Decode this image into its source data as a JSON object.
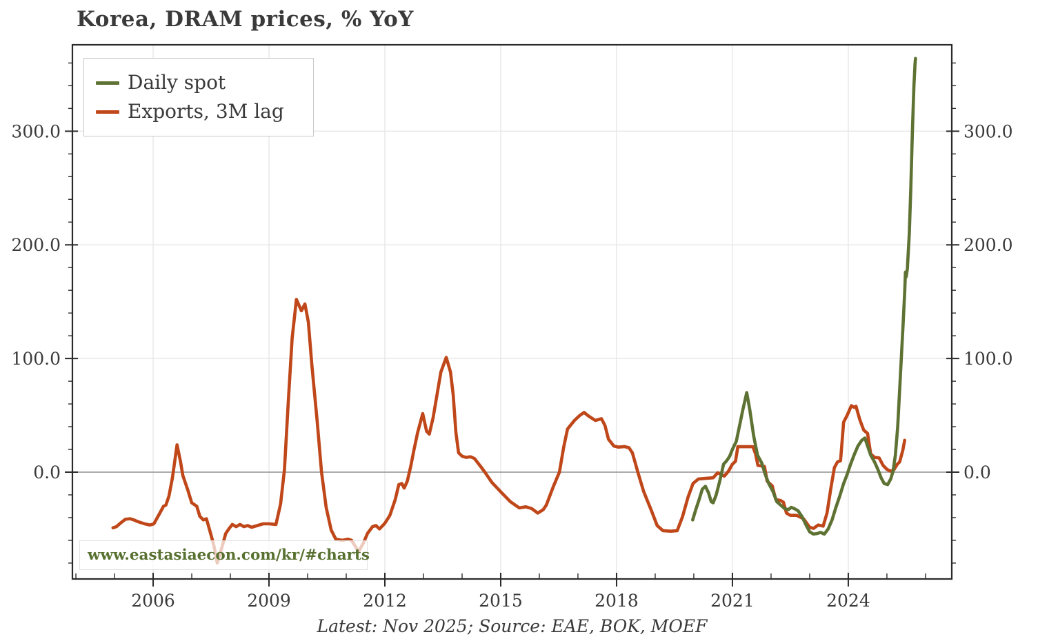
{
  "header": {
    "title": "Korea, DRAM prices, % YoY"
  },
  "caption": {
    "text": "Latest: Nov 2025; Source: EAE, BOK, MOEF"
  },
  "watermark": {
    "text": "www.eastasiaecon.com/kr/#charts",
    "color": "#587130"
  },
  "colors": {
    "background": "#ffffff",
    "grid": "#e7e7e7",
    "zero_line": "#8f8f8f",
    "spine": "#2a2a2a",
    "text": "#3a3a3a"
  },
  "chart_data": {
    "type": "line",
    "title": "Korea, DRAM prices, % YoY",
    "xlabel": "",
    "ylabel": "",
    "xlim": [
      2003.91,
      2026.68
    ],
    "ylim": [
      -94,
      376
    ],
    "x_major_ticks": [
      2006,
      2009,
      2012,
      2015,
      2018,
      2021,
      2024
    ],
    "x_tick_labels": [
      "2006",
      "2009",
      "2012",
      "2015",
      "2018",
      "2021",
      "2024"
    ],
    "x_minor_step": 1,
    "y_major_ticks": [
      0,
      100,
      200,
      300
    ],
    "y_tick_labels": [
      "0.0",
      "100.0",
      "200.0",
      "300.0"
    ],
    "y_minor_step": 20,
    "grid": true,
    "zero_line": true,
    "legend": {
      "position": "upper left",
      "entries": [
        {
          "label": "Daily spot",
          "color": "#5e7233"
        },
        {
          "label": "Exports, 3M lag",
          "color": "#bf4719"
        }
      ]
    },
    "series": [
      {
        "name": "Exports, 3M lag",
        "color": "#bf4719",
        "points": [
          [
            2004.96,
            -49
          ],
          [
            2005.05,
            -48
          ],
          [
            2005.15,
            -45
          ],
          [
            2005.28,
            -41.5
          ],
          [
            2005.4,
            -41
          ],
          [
            2005.5,
            -42
          ],
          [
            2005.6,
            -43.5
          ],
          [
            2005.78,
            -45.5
          ],
          [
            2005.92,
            -46.5
          ],
          [
            2006.02,
            -45.5
          ],
          [
            2006.14,
            -38
          ],
          [
            2006.27,
            -30
          ],
          [
            2006.33,
            -29
          ],
          [
            2006.41,
            -21
          ],
          [
            2006.5,
            -5
          ],
          [
            2006.62,
            24
          ],
          [
            2006.71,
            9
          ],
          [
            2006.77,
            -3
          ],
          [
            2006.89,
            -15
          ],
          [
            2007.0,
            -27
          ],
          [
            2007.13,
            -30
          ],
          [
            2007.21,
            -39
          ],
          [
            2007.3,
            -42
          ],
          [
            2007.38,
            -41
          ],
          [
            2007.48,
            -53
          ],
          [
            2007.57,
            -64
          ],
          [
            2007.66,
            -80
          ],
          [
            2007.79,
            -65
          ],
          [
            2007.88,
            -54
          ],
          [
            2007.96,
            -50
          ],
          [
            2008.05,
            -46
          ],
          [
            2008.15,
            -48
          ],
          [
            2008.25,
            -46
          ],
          [
            2008.35,
            -48
          ],
          [
            2008.45,
            -47
          ],
          [
            2008.55,
            -48.5
          ],
          [
            2008.7,
            -47
          ],
          [
            2008.85,
            -45.5
          ],
          [
            2009.0,
            -45.5
          ],
          [
            2009.18,
            -46
          ],
          [
            2009.3,
            -28
          ],
          [
            2009.4,
            2
          ],
          [
            2009.5,
            62
          ],
          [
            2009.6,
            118
          ],
          [
            2009.71,
            152
          ],
          [
            2009.84,
            142
          ],
          [
            2009.93,
            148
          ],
          [
            2010.02,
            132
          ],
          [
            2010.11,
            94
          ],
          [
            2010.25,
            44
          ],
          [
            2010.36,
            0
          ],
          [
            2010.48,
            -31
          ],
          [
            2010.61,
            -51
          ],
          [
            2010.73,
            -59
          ],
          [
            2010.9,
            -60
          ],
          [
            2011.05,
            -59
          ],
          [
            2011.14,
            -60
          ],
          [
            2011.32,
            -70
          ],
          [
            2011.45,
            -62
          ],
          [
            2011.55,
            -54
          ],
          [
            2011.68,
            -48
          ],
          [
            2011.77,
            -47
          ],
          [
            2011.86,
            -50
          ],
          [
            2012.0,
            -45
          ],
          [
            2012.13,
            -38
          ],
          [
            2012.27,
            -24
          ],
          [
            2012.36,
            -11
          ],
          [
            2012.44,
            -10
          ],
          [
            2012.5,
            -14
          ],
          [
            2012.58,
            -8
          ],
          [
            2012.67,
            5
          ],
          [
            2012.75,
            19
          ],
          [
            2012.85,
            35
          ],
          [
            2012.98,
            51.5
          ],
          [
            2013.08,
            36
          ],
          [
            2013.15,
            33.5
          ],
          [
            2013.25,
            48
          ],
          [
            2013.35,
            68
          ],
          [
            2013.45,
            88
          ],
          [
            2013.59,
            101
          ],
          [
            2013.7,
            88
          ],
          [
            2013.77,
            68
          ],
          [
            2013.84,
            35
          ],
          [
            2013.91,
            17
          ],
          [
            2014.0,
            14
          ],
          [
            2014.1,
            13
          ],
          [
            2014.22,
            13.5
          ],
          [
            2014.32,
            12
          ],
          [
            2014.48,
            5
          ],
          [
            2014.59,
            0
          ],
          [
            2014.77,
            -9
          ],
          [
            2015.02,
            -18
          ],
          [
            2015.25,
            -26
          ],
          [
            2015.48,
            -31.5
          ],
          [
            2015.65,
            -30.5
          ],
          [
            2015.8,
            -32
          ],
          [
            2015.96,
            -36
          ],
          [
            2016.1,
            -33
          ],
          [
            2016.18,
            -29
          ],
          [
            2016.36,
            -13
          ],
          [
            2016.52,
            0
          ],
          [
            2016.63,
            22
          ],
          [
            2016.73,
            38
          ],
          [
            2016.91,
            45.5
          ],
          [
            2017.05,
            50
          ],
          [
            2017.16,
            52.5
          ],
          [
            2017.27,
            49.5
          ],
          [
            2017.45,
            45.5
          ],
          [
            2017.61,
            47
          ],
          [
            2017.7,
            41
          ],
          [
            2017.79,
            29
          ],
          [
            2017.93,
            23
          ],
          [
            2018.05,
            22
          ],
          [
            2018.2,
            22.5
          ],
          [
            2018.32,
            21.5
          ],
          [
            2018.41,
            17
          ],
          [
            2018.55,
            0
          ],
          [
            2018.7,
            -17
          ],
          [
            2018.91,
            -34.5
          ],
          [
            2019.05,
            -47
          ],
          [
            2019.2,
            -51.5
          ],
          [
            2019.4,
            -52
          ],
          [
            2019.57,
            -51.5
          ],
          [
            2019.71,
            -39
          ],
          [
            2019.85,
            -22
          ],
          [
            2019.98,
            -10
          ],
          [
            2020.12,
            -6
          ],
          [
            2020.3,
            -5.5
          ],
          [
            2020.5,
            -5
          ],
          [
            2020.62,
            -0.5
          ],
          [
            2020.79,
            -3.5
          ],
          [
            2020.9,
            1
          ],
          [
            2021.0,
            7
          ],
          [
            2021.08,
            9.5
          ],
          [
            2021.14,
            22.4
          ],
          [
            2021.35,
            22.4
          ],
          [
            2021.53,
            22.4
          ],
          [
            2021.6,
            16
          ],
          [
            2021.66,
            6
          ],
          [
            2021.83,
            5
          ],
          [
            2021.9,
            -8
          ],
          [
            2022.03,
            -12
          ],
          [
            2022.12,
            -24
          ],
          [
            2022.25,
            -25
          ],
          [
            2022.32,
            -26.5
          ],
          [
            2022.4,
            -36
          ],
          [
            2022.5,
            -38
          ],
          [
            2022.66,
            -38
          ],
          [
            2022.84,
            -41
          ],
          [
            2023.0,
            -48.5
          ],
          [
            2023.1,
            -49.5
          ],
          [
            2023.22,
            -46.5
          ],
          [
            2023.35,
            -47.5
          ],
          [
            2023.45,
            -36
          ],
          [
            2023.55,
            -14
          ],
          [
            2023.64,
            4
          ],
          [
            2023.72,
            9
          ],
          [
            2023.8,
            10
          ],
          [
            2023.88,
            44
          ],
          [
            2023.97,
            50
          ],
          [
            2024.08,
            58.5
          ],
          [
            2024.15,
            57
          ],
          [
            2024.2,
            58
          ],
          [
            2024.3,
            46
          ],
          [
            2024.4,
            37
          ],
          [
            2024.5,
            34
          ],
          [
            2024.58,
            16
          ],
          [
            2024.68,
            13
          ],
          [
            2024.8,
            12.5
          ],
          [
            2024.9,
            6
          ],
          [
            2025.0,
            2.5
          ],
          [
            2025.1,
            0.8
          ],
          [
            2025.18,
            2
          ],
          [
            2025.27,
            7
          ],
          [
            2025.33,
            9
          ],
          [
            2025.41,
            19
          ],
          [
            2025.46,
            28
          ]
        ]
      },
      {
        "name": "Daily spot",
        "color": "#5e7233",
        "points": [
          [
            2019.97,
            -42
          ],
          [
            2020.05,
            -33
          ],
          [
            2020.13,
            -25
          ],
          [
            2020.22,
            -15
          ],
          [
            2020.3,
            -12.5
          ],
          [
            2020.38,
            -18
          ],
          [
            2020.45,
            -26
          ],
          [
            2020.5,
            -27
          ],
          [
            2020.58,
            -20
          ],
          [
            2020.67,
            -8
          ],
          [
            2020.77,
            7
          ],
          [
            2020.85,
            10
          ],
          [
            2020.93,
            14
          ],
          [
            2021.0,
            20
          ],
          [
            2021.1,
            27
          ],
          [
            2021.18,
            40
          ],
          [
            2021.27,
            55
          ],
          [
            2021.37,
            70
          ],
          [
            2021.45,
            55
          ],
          [
            2021.55,
            32
          ],
          [
            2021.65,
            15
          ],
          [
            2021.76,
            8
          ],
          [
            2021.85,
            -2
          ],
          [
            2021.94,
            -10
          ],
          [
            2022.05,
            -17
          ],
          [
            2022.15,
            -26
          ],
          [
            2022.25,
            -29
          ],
          [
            2022.35,
            -32
          ],
          [
            2022.45,
            -33
          ],
          [
            2022.52,
            -31
          ],
          [
            2022.6,
            -32
          ],
          [
            2022.7,
            -34
          ],
          [
            2022.8,
            -39
          ],
          [
            2022.9,
            -46
          ],
          [
            2023.0,
            -52.5
          ],
          [
            2023.1,
            -54.5
          ],
          [
            2023.2,
            -54
          ],
          [
            2023.28,
            -53
          ],
          [
            2023.38,
            -54.5
          ],
          [
            2023.48,
            -50
          ],
          [
            2023.58,
            -42
          ],
          [
            2023.68,
            -31
          ],
          [
            2023.78,
            -21
          ],
          [
            2023.88,
            -10
          ],
          [
            2023.97,
            -2
          ],
          [
            2024.05,
            6
          ],
          [
            2024.15,
            15
          ],
          [
            2024.25,
            23
          ],
          [
            2024.35,
            28
          ],
          [
            2024.43,
            30
          ],
          [
            2024.5,
            23
          ],
          [
            2024.58,
            15
          ],
          [
            2024.68,
            9
          ],
          [
            2024.77,
            2
          ],
          [
            2024.85,
            -5
          ],
          [
            2024.93,
            -10
          ],
          [
            2025.02,
            -11
          ],
          [
            2025.1,
            -6
          ],
          [
            2025.16,
            1
          ],
          [
            2025.22,
            15
          ],
          [
            2025.28,
            40
          ],
          [
            2025.35,
            85
          ],
          [
            2025.42,
            130
          ],
          [
            2025.46,
            158
          ],
          [
            2025.48,
            176
          ],
          [
            2025.5,
            172
          ],
          [
            2025.53,
            179
          ],
          [
            2025.58,
            210
          ],
          [
            2025.62,
            250
          ],
          [
            2025.66,
            300
          ],
          [
            2025.7,
            340
          ],
          [
            2025.73,
            360
          ],
          [
            2025.74,
            364
          ]
        ]
      }
    ]
  }
}
